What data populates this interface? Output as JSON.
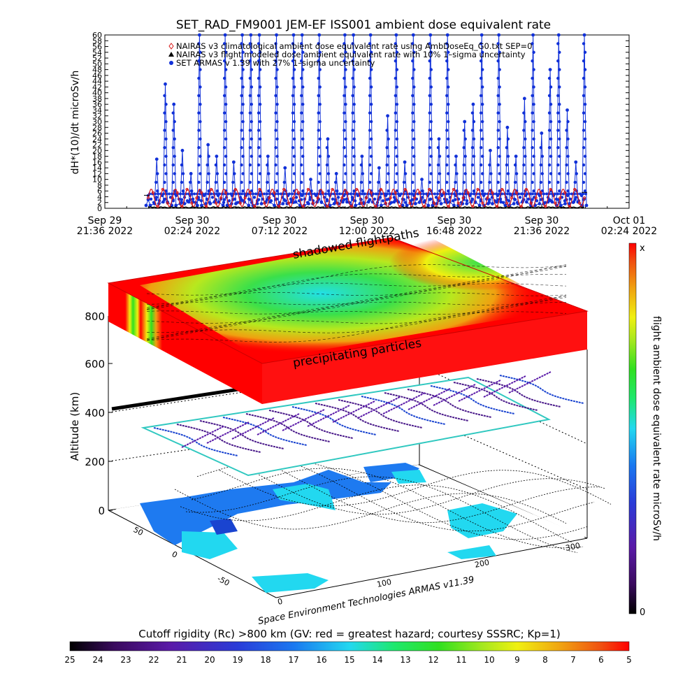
{
  "colors": {
    "nairas_climatological": "#d81818",
    "nairas_flight": "#000000",
    "armas": "#1030d8",
    "colorbar_stops": [
      "#000000",
      "#3a0a5e",
      "#5a1aa8",
      "#2a3cd8",
      "#1a78f0",
      "#22d8f0",
      "#1ee86e",
      "#30e020",
      "#a8e81e",
      "#f0f010",
      "#f0a010",
      "#f05010",
      "#ff0000"
    ]
  },
  "chart_data": [
    {
      "type": "line",
      "title": "SET_RAD_FM9001  JEM-EF ISS001 ambient dose equivalent rate",
      "ylabel": "dH*(10)/dt microSv/h",
      "xlabel": "",
      "ylim": [
        0,
        60
      ],
      "yticks": [
        0,
        2,
        4,
        6,
        8,
        10,
        12,
        14,
        16,
        18,
        20,
        22,
        24,
        26,
        28,
        30,
        32,
        34,
        36,
        38,
        40,
        42,
        44,
        46,
        48,
        50,
        52,
        54,
        56,
        58,
        60
      ],
      "xlim": [
        "2022-09-29 21:36",
        "2022-10-01 02:24"
      ],
      "xticks": [
        {
          "line1": "Sep 29",
          "line2": "21:36  2022"
        },
        {
          "line1": "Sep 30",
          "line2": "02:24  2022"
        },
        {
          "line1": "Sep 30",
          "line2": "07:12  2022"
        },
        {
          "line1": "Sep 30",
          "line2": "12:00  2022"
        },
        {
          "line1": "Sep 30",
          "line2": "16:48  2022"
        },
        {
          "line1": "Sep 30",
          "line2": "21:36  2022"
        },
        {
          "line1": "Oct 01",
          "line2": "02:24  2022"
        }
      ],
      "legend_position": "top",
      "series": [
        {
          "name": "NAIRAS v3 climatological ambient dose equivalent rate using AmbDoseEq_G0.txt SEP=0",
          "color": "#d81818",
          "marker": "diamond",
          "values": [
            3.5,
            6.5,
            7.2,
            6.8,
            6.5
          ]
        },
        {
          "name": "NAIRAS v3 flight modeled dose ambient equivalent rate with 10% 1–sigma uncertainty",
          "color": "#000000",
          "marker": "triangle",
          "values": [
            0.2,
            0.5,
            0.3,
            0.4,
            0.2
          ]
        },
        {
          "name": "SET ARMAS v 1.39 with 27% 1–sigma uncertainty",
          "color": "#1030d8",
          "marker": "circle",
          "values": [
            3,
            17,
            43,
            36,
            20,
            12,
            60,
            22,
            18,
            60,
            16,
            60,
            60,
            60,
            18,
            60,
            14,
            60,
            60,
            10,
            60,
            24,
            12,
            60,
            60,
            18,
            60,
            14,
            32,
            60,
            16,
            60,
            10,
            60,
            24,
            60,
            18,
            30,
            36,
            60,
            20,
            60,
            28,
            18,
            38,
            60,
            26,
            48,
            60,
            34,
            16,
            60
          ]
        }
      ]
    },
    {
      "type": "heatmap",
      "title": "Cutoff rigidity (Rc) >800 km (GV: red = greatest hazard; courtesy SSSRC; Kp=1)",
      "zlabel": "Altitude (km)",
      "ztick_labels": [
        "0",
        "200",
        "400",
        "600",
        "800"
      ],
      "lon_tick_labels": [
        "0",
        "100",
        "200",
        "300"
      ],
      "lat_tick_labels": [
        "-50",
        "0",
        "50"
      ],
      "annotations": [
        "shadowed flightpaths",
        "precipitating particles"
      ],
      "credit": "Space Environment Technologies ARMAS v11.39",
      "colorbar_horizontal_labels": [
        "25",
        "24",
        "23",
        "22",
        "21",
        "20",
        "19",
        "18",
        "17",
        "16",
        "15",
        "14",
        "13",
        "12",
        "11",
        "10",
        "9",
        "8",
        "7",
        "6",
        "5"
      ],
      "colorbar_vertical": {
        "label": "flight ambient dose equivalent rate microSv/h",
        "top": "x",
        "bottom": "0"
      }
    }
  ]
}
